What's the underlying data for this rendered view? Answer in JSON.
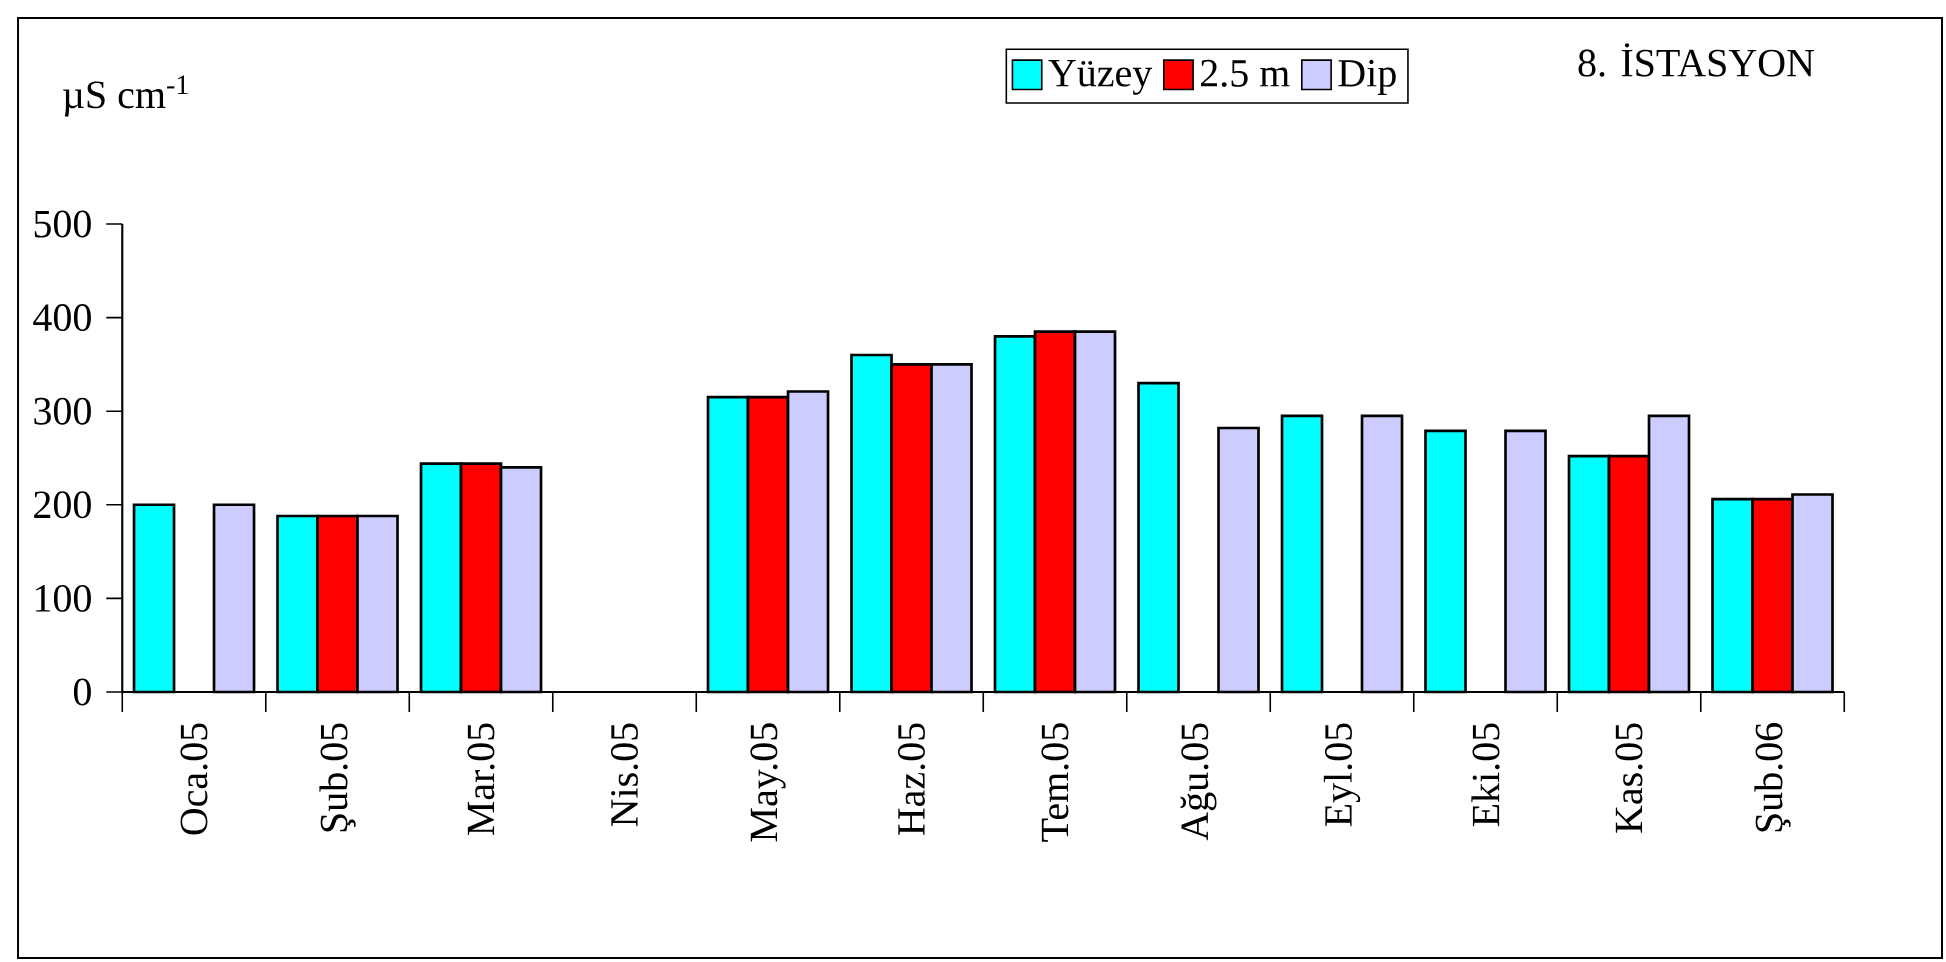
{
  "chart_data": {
    "type": "bar",
    "title": "8. İSTASYON",
    "ylabel": "µS cm$^{-1}$",
    "categories": [
      "Oca.05",
      "Şub.05",
      "Mar.05",
      "Nis.05",
      "May.05",
      "Haz.05",
      "Tem.05",
      "Ağu.05",
      "Eyl.05",
      "Eki.05",
      "Kas.05",
      "Şub.06"
    ],
    "series": [
      {
        "name": "Yüzey",
        "color": "#00ffff",
        "values": [
          200,
          188,
          244,
          null,
          315,
          360,
          380,
          330,
          295,
          279,
          252,
          206
        ]
      },
      {
        "name": "2.5 m",
        "color": "#ff0000",
        "values": [
          null,
          188,
          244,
          null,
          315,
          350,
          385,
          null,
          null,
          null,
          252,
          206
        ]
      },
      {
        "name": "Dip",
        "color": "#ccccff",
        "values": [
          200,
          188,
          240,
          null,
          321,
          350,
          385,
          282,
          295,
          279,
          295,
          211
        ]
      }
    ],
    "ylim": [
      0,
      500
    ],
    "yticks": [
      0,
      100,
      200,
      300,
      400,
      500
    ],
    "grid": false,
    "legend": "top"
  }
}
